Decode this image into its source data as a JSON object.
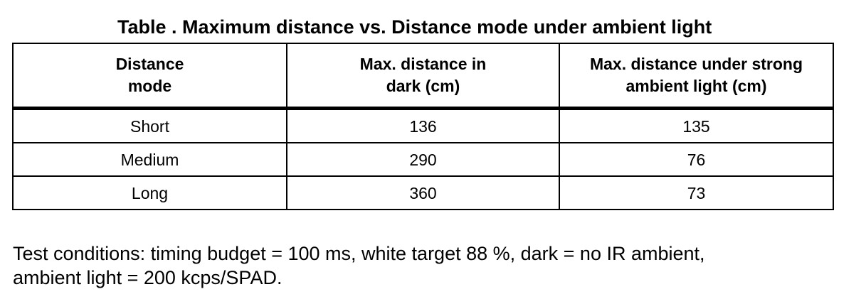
{
  "title": "Table . Maximum distance vs. Distance mode under ambient light",
  "table": {
    "headers": [
      [
        "Distance",
        "mode"
      ],
      [
        "Max. distance in",
        "dark (cm)"
      ],
      [
        "Max. distance under strong",
        "ambient light (cm)"
      ]
    ],
    "rows": [
      [
        "Short",
        "136",
        "135"
      ],
      [
        "Medium",
        "290",
        "76"
      ],
      [
        "Long",
        "360",
        "73"
      ]
    ]
  },
  "note": {
    "line1": "Test conditions: timing budget = 100 ms, white target 88 %, dark = no IR ambient,",
    "line2": "ambient light = 200 kcps/SPAD."
  }
}
